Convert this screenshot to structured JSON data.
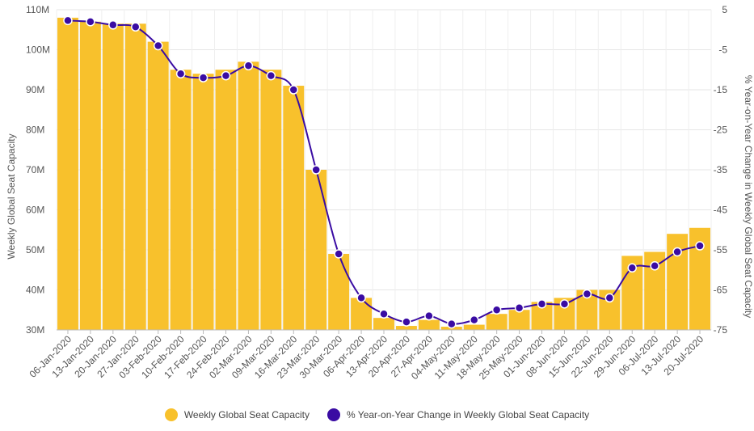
{
  "chart_data": {
    "type": "bar",
    "colors": {
      "bars": "#F8C12C",
      "line": "#3A0CA3",
      "grid": "#E6E6E6"
    },
    "categories": [
      "06-Jan-2020",
      "13-Jan-2020",
      "20-Jan-2020",
      "27-Jan-2020",
      "03-Feb-2020",
      "10-Feb-2020",
      "17-Feb-2020",
      "24-Feb-2020",
      "02-Mar-2020",
      "09-Mar-2020",
      "16-Mar-2020",
      "23-Mar-2020",
      "30-Mar-2020",
      "06-Apr-2020",
      "13-Apr-2020",
      "20-Apr-2020",
      "27-Apr-2020",
      "04-May-2020",
      "11-May-2020",
      "18-May-2020",
      "25-May-2020",
      "01-Jun-2020",
      "08-Jun-2020",
      "15-Jun-2020",
      "22-Jun-2020",
      "29-Jun-2020",
      "06-Jul-2020",
      "13-Jul-2020",
      "20-Jul-2020"
    ],
    "series": [
      {
        "name": "Weekly Global Seat Capacity",
        "kind": "bar",
        "axis": "left",
        "values": [
          108,
          107,
          106.5,
          106.5,
          102,
          95,
          94,
          95,
          97,
          95,
          91,
          70,
          49,
          38,
          33,
          31,
          32.5,
          30.8,
          31.3,
          34,
          35,
          37,
          38,
          40,
          40,
          48.5,
          49.5,
          54,
          55.5
        ]
      },
      {
        "name": "% Year-on-Year Change in Weekly Global Seat Capacity",
        "kind": "line",
        "axis": "right",
        "values": [
          2.3,
          2.0,
          1.2,
          0.7,
          -4,
          -11,
          -12,
          -11.5,
          -9,
          -11.5,
          -15,
          -35,
          -56,
          -67,
          -71,
          -73,
          -71.5,
          -73.5,
          -72.5,
          -70,
          -69.5,
          -68.5,
          -68.5,
          -66,
          -67,
          -59.5,
          -59,
          -55.5,
          -54
        ]
      }
    ],
    "ylabel": "Weekly Global Seat Capacity",
    "ylabel_right": "% Year-on-Year Change in Weekly Global Seat Capacity",
    "ylim": [
      30,
      110
    ],
    "ylim_right": [
      -75,
      5
    ],
    "yticks": [
      "30M",
      "40M",
      "50M",
      "60M",
      "70M",
      "80M",
      "90M",
      "100M",
      "110M"
    ],
    "yticks_right": [
      "-75",
      "-65",
      "-55",
      "-45",
      "-35",
      "-25",
      "-15",
      "-5",
      "5"
    ],
    "grid": true,
    "legend_position": "bottom"
  },
  "legend": {
    "bar_label": "Weekly Global Seat Capacity",
    "line_label": "% Year-on-Year Change in Weekly Global Seat Capacity"
  }
}
